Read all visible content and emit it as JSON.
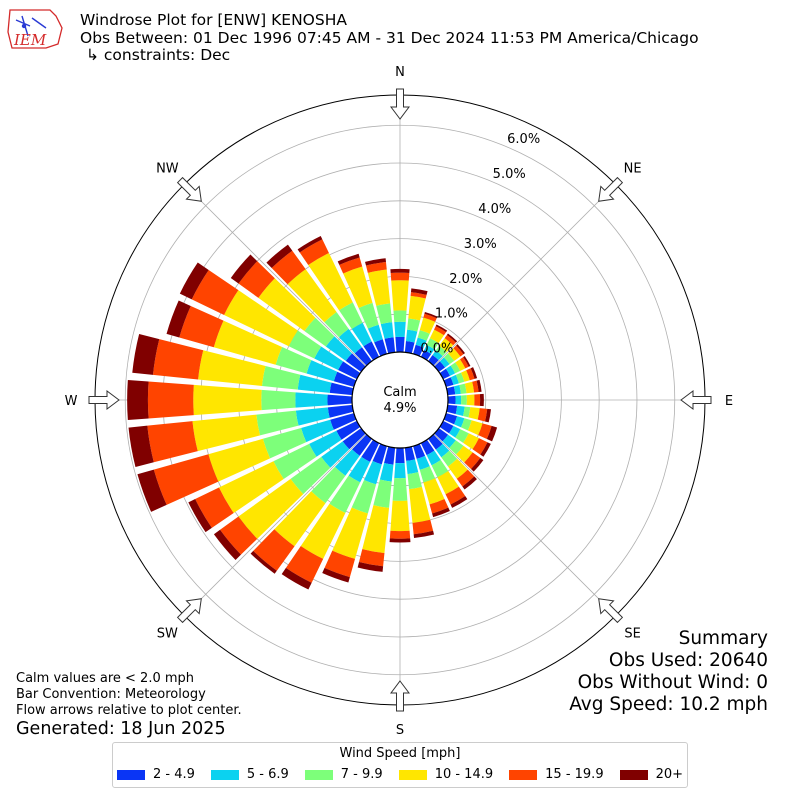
{
  "header": {
    "title": "Windrose Plot for [ENW] KENOSHA",
    "observation_period": "Obs Between: 01 Dec 1996 07:45 AM - 31 Dec 2024 11:53 PM America/Chicago",
    "constraints": "↳ constraints: Dec"
  },
  "logo": {
    "text": "IEM",
    "color": "#d42a2a"
  },
  "summary": {
    "title": "Summary",
    "obs_used": "Obs Used: 20640",
    "obs_without_wind": "Obs Without Wind: 0",
    "avg_speed": "Avg Speed: 10.2 mph"
  },
  "notes": {
    "line1": "Calm values are < 2.0 mph",
    "line2": "Bar Convention: Meteorology",
    "line3": "Flow arrows relative to plot center."
  },
  "generated": "Generated: 18 Jun 2025",
  "chart_data": {
    "type": "windrose",
    "legend": {
      "title": "Wind Speed [mph]",
      "placement": "bottom-center",
      "bins": [
        {
          "label": "2 - 4.9",
          "color": "#0a35f5"
        },
        {
          "label": "5 - 6.9",
          "color": "#0bd2f0"
        },
        {
          "label": "7 - 9.9",
          "color": "#7dff7a"
        },
        {
          "label": "10 - 14.9",
          "color": "#ffe600"
        },
        {
          "label": "15 - 19.9",
          "color": "#ff4400"
        },
        {
          "label": "20+",
          "color": "#800000"
        }
      ]
    },
    "radial_ticks": [
      0,
      1,
      2,
      3,
      4,
      5,
      6
    ],
    "radial_tick_labels": [
      "0.0%",
      "1.0%",
      "2.0%",
      "3.0%",
      "4.0%",
      "5.0%",
      "6.0%"
    ],
    "radial_range": [
      0,
      6.8
    ],
    "direction_labels": [
      "N",
      "NE",
      "E",
      "SE",
      "S",
      "SW",
      "W",
      "NW"
    ],
    "direction_angles": [
      0,
      45,
      90,
      135,
      180,
      225,
      270,
      315
    ],
    "calm_label": "Calm",
    "calm_value": "4.9%",
    "grid": true,
    "directions": [
      {
        "angle": 0,
        "cumulative": [
          0.4,
          0.8,
          1.1,
          1.9,
          2.1,
          2.2
        ]
      },
      {
        "angle": 10,
        "cumulative": [
          0.3,
          0.6,
          0.9,
          1.5,
          1.6,
          1.7
        ]
      },
      {
        "angle": 20,
        "cumulative": [
          0.25,
          0.45,
          0.65,
          1.0,
          1.1,
          1.15
        ]
      },
      {
        "angle": 30,
        "cumulative": [
          0.2,
          0.35,
          0.55,
          0.8,
          0.9,
          0.95
        ]
      },
      {
        "angle": 40,
        "cumulative": [
          0.2,
          0.35,
          0.5,
          0.75,
          0.85,
          0.9
        ]
      },
      {
        "angle": 50,
        "cumulative": [
          0.2,
          0.35,
          0.5,
          0.7,
          0.8,
          0.85
        ]
      },
      {
        "angle": 60,
        "cumulative": [
          0.2,
          0.35,
          0.5,
          0.65,
          0.75,
          0.8
        ]
      },
      {
        "angle": 70,
        "cumulative": [
          0.2,
          0.35,
          0.5,
          0.65,
          0.78,
          0.85
        ]
      },
      {
        "angle": 80,
        "cumulative": [
          0.2,
          0.35,
          0.5,
          0.7,
          0.82,
          0.9
        ]
      },
      {
        "angle": 90,
        "cumulative": [
          0.2,
          0.35,
          0.5,
          0.7,
          0.85,
          0.95
        ]
      },
      {
        "angle": 100,
        "cumulative": [
          0.25,
          0.45,
          0.6,
          0.85,
          1.05,
          1.15
        ]
      },
      {
        "angle": 110,
        "cumulative": [
          0.3,
          0.5,
          0.7,
          1.0,
          1.25,
          1.4
        ]
      },
      {
        "angle": 120,
        "cumulative": [
          0.3,
          0.5,
          0.75,
          1.05,
          1.3,
          1.4
        ]
      },
      {
        "angle": 130,
        "cumulative": [
          0.3,
          0.55,
          0.8,
          1.1,
          1.35,
          1.45
        ]
      },
      {
        "angle": 140,
        "cumulative": [
          0.35,
          0.6,
          0.9,
          1.3,
          1.55,
          1.65
        ]
      },
      {
        "angle": 150,
        "cumulative": [
          0.35,
          0.65,
          1.0,
          1.5,
          1.8,
          1.9
        ]
      },
      {
        "angle": 160,
        "cumulative": [
          0.35,
          0.65,
          1.0,
          1.6,
          1.85,
          1.95
        ]
      },
      {
        "angle": 170,
        "cumulative": [
          0.35,
          0.7,
          1.1,
          2.0,
          2.3,
          2.4
        ]
      },
      {
        "angle": 180,
        "cumulative": [
          0.4,
          0.8,
          1.4,
          2.2,
          2.4,
          2.5
        ]
      },
      {
        "angle": 190,
        "cumulative": [
          0.45,
          0.9,
          1.6,
          2.8,
          3.15,
          3.3
        ]
      },
      {
        "angle": 200,
        "cumulative": [
          0.5,
          1.05,
          1.85,
          3.1,
          3.6,
          3.75
        ]
      },
      {
        "angle": 210,
        "cumulative": [
          0.55,
          1.15,
          2.05,
          3.4,
          4.1,
          4.3
        ]
      },
      {
        "angle": 220,
        "cumulative": [
          0.55,
          1.2,
          2.1,
          3.5,
          4.3,
          4.4
        ]
      },
      {
        "angle": 230,
        "cumulative": [
          0.6,
          1.3,
          2.3,
          4.0,
          4.6,
          4.8
        ]
      },
      {
        "angle": 240,
        "cumulative": [
          0.6,
          1.4,
          2.45,
          4.05,
          4.75,
          4.95
        ]
      },
      {
        "angle": 250,
        "cumulative": [
          0.65,
          1.45,
          2.5,
          4.0,
          5.5,
          5.95
        ]
      },
      {
        "angle": 260,
        "cumulative": [
          0.65,
          1.5,
          2.55,
          4.25,
          5.45,
          5.95
        ]
      },
      {
        "angle": 270,
        "cumulative": [
          0.65,
          1.5,
          2.4,
          4.2,
          5.4,
          5.95
        ]
      },
      {
        "angle": 280,
        "cumulative": [
          0.6,
          1.45,
          2.4,
          4.1,
          5.3,
          5.85
        ]
      },
      {
        "angle": 290,
        "cumulative": [
          0.55,
          1.3,
          2.15,
          3.85,
          4.8,
          5.15
        ]
      },
      {
        "angle": 300,
        "cumulative": [
          0.55,
          1.25,
          2.0,
          3.9,
          4.85,
          5.2
        ]
      },
      {
        "angle": 310,
        "cumulative": [
          0.5,
          1.15,
          1.85,
          3.35,
          4.0,
          4.25
        ]
      },
      {
        "angle": 320,
        "cumulative": [
          0.45,
          1.05,
          1.6,
          3.0,
          3.6,
          3.8
        ]
      },
      {
        "angle": 330,
        "cumulative": [
          0.45,
          1.0,
          1.6,
          3.05,
          3.45,
          3.55
        ]
      },
      {
        "angle": 340,
        "cumulative": [
          0.4,
          0.8,
          1.4,
          2.4,
          2.65,
          2.75
        ]
      },
      {
        "angle": 350,
        "cumulative": [
          0.4,
          0.8,
          1.3,
          2.2,
          2.4,
          2.5
        ]
      }
    ]
  }
}
